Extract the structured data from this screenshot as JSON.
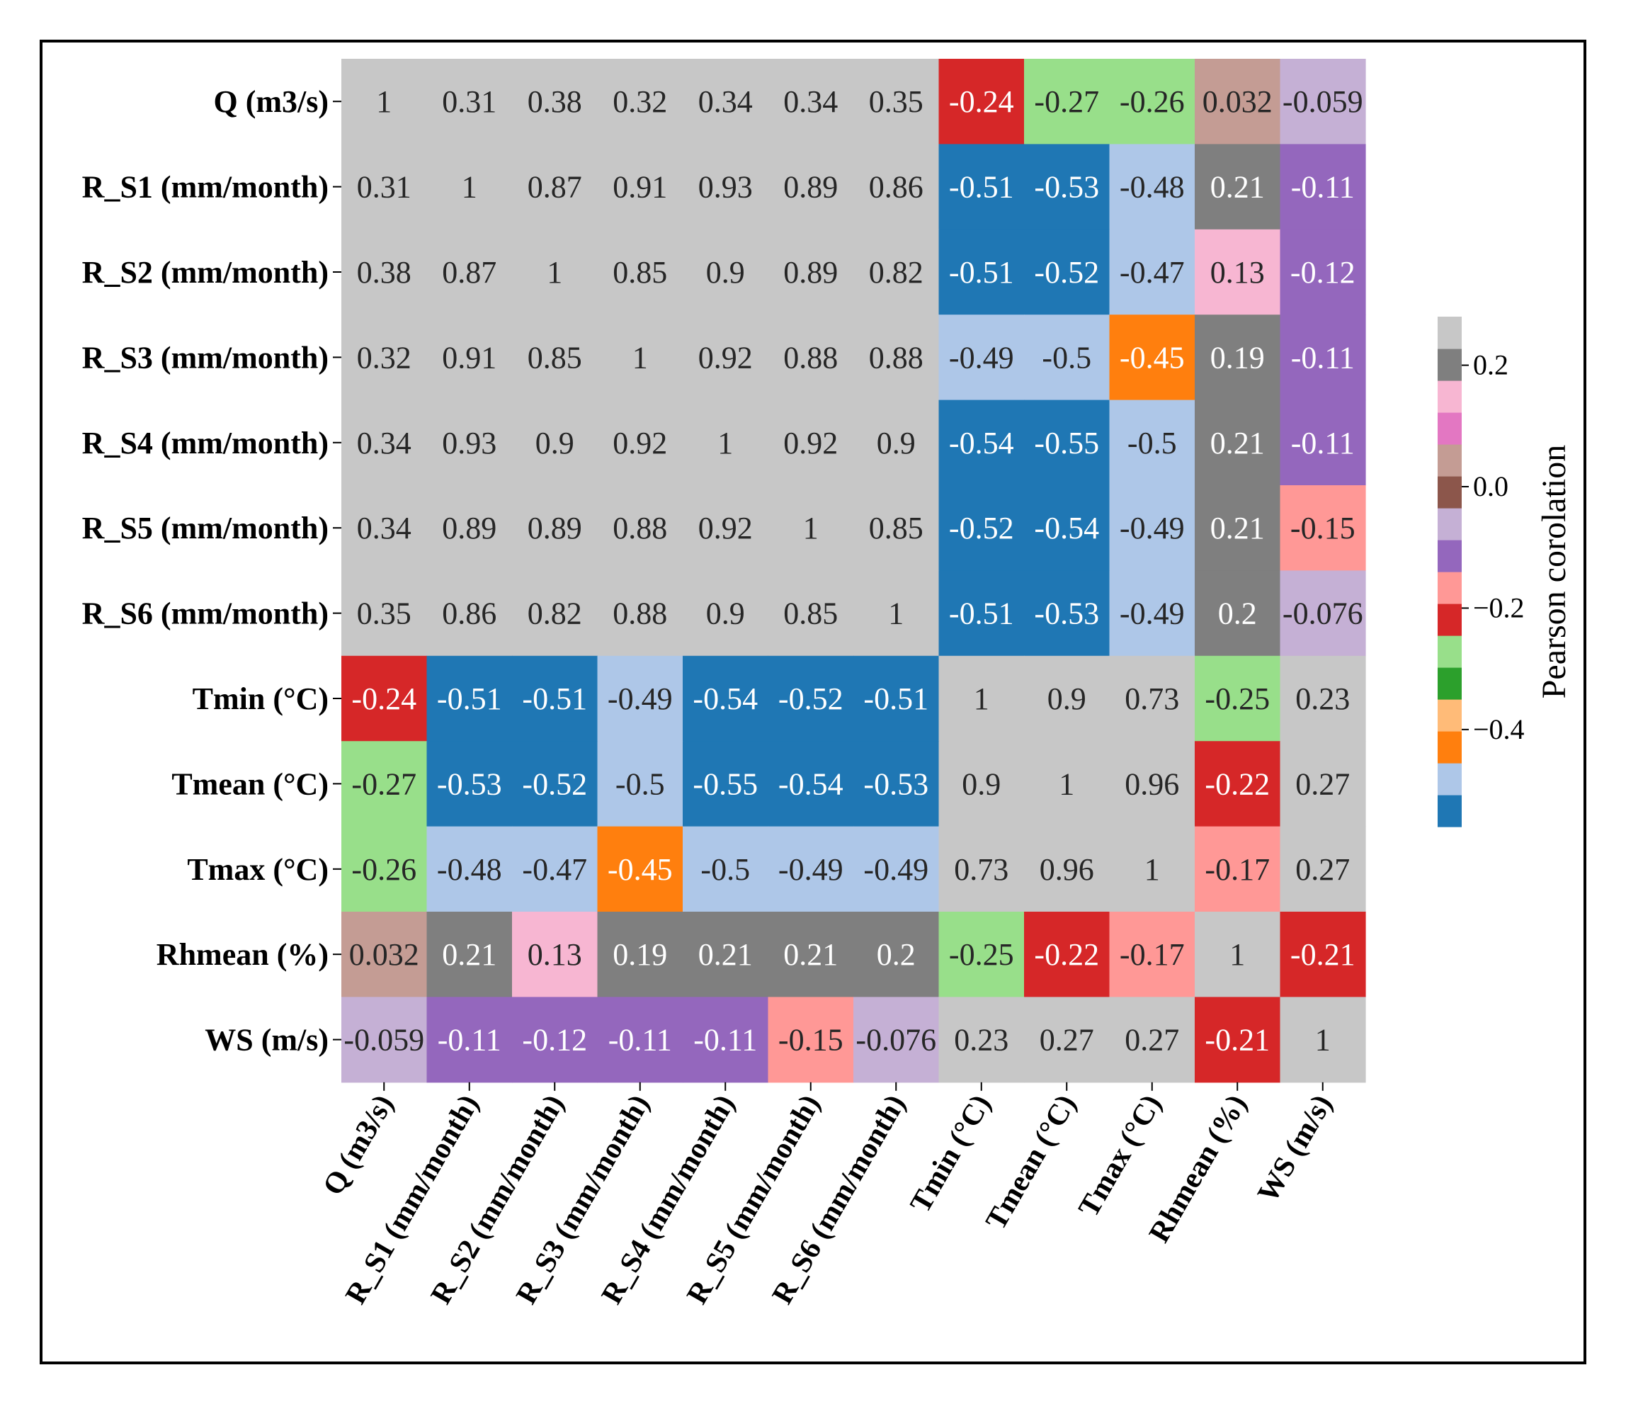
{
  "chart_data": {
    "type": "heatmap",
    "title": "",
    "variables": [
      "Q (m3/s)",
      "R_S1 (mm/month)",
      "R_S2 (mm/month)",
      "R_S3 (mm/month)",
      "R_S4 (mm/month)",
      "R_S5 (mm/month)",
      "R_S6 (mm/month)",
      "Tmin (°C)",
      "Tmean (°C)",
      "Tmax (°C)",
      "Rhmean (%)",
      "WS (m/s)"
    ],
    "values": [
      [
        1,
        0.31,
        0.38,
        0.32,
        0.34,
        0.34,
        0.35,
        -0.24,
        -0.27,
        -0.26,
        0.032,
        -0.059
      ],
      [
        0.31,
        1,
        0.87,
        0.91,
        0.93,
        0.89,
        0.86,
        -0.51,
        -0.53,
        -0.48,
        0.21,
        -0.11
      ],
      [
        0.38,
        0.87,
        1,
        0.85,
        0.9,
        0.89,
        0.82,
        -0.51,
        -0.52,
        -0.47,
        0.13,
        -0.12
      ],
      [
        0.32,
        0.91,
        0.85,
        1,
        0.92,
        0.88,
        0.88,
        -0.49,
        -0.5,
        -0.45,
        0.19,
        -0.11
      ],
      [
        0.34,
        0.93,
        0.9,
        0.92,
        1,
        0.92,
        0.9,
        -0.54,
        -0.55,
        -0.5,
        0.21,
        -0.11
      ],
      [
        0.34,
        0.89,
        0.89,
        0.88,
        0.92,
        1,
        0.85,
        -0.52,
        -0.54,
        -0.49,
        0.21,
        -0.15
      ],
      [
        0.35,
        0.86,
        0.82,
        0.88,
        0.9,
        0.85,
        1,
        -0.51,
        -0.53,
        -0.49,
        0.2,
        -0.076
      ],
      [
        -0.24,
        -0.51,
        -0.51,
        -0.49,
        -0.54,
        -0.52,
        -0.51,
        1,
        0.9,
        0.73,
        -0.25,
        0.23
      ],
      [
        -0.27,
        -0.53,
        -0.52,
        -0.5,
        -0.55,
        -0.54,
        -0.53,
        0.9,
        1,
        0.96,
        -0.22,
        0.27
      ],
      [
        -0.26,
        -0.48,
        -0.47,
        -0.45,
        -0.5,
        -0.49,
        -0.49,
        0.73,
        0.96,
        1,
        -0.17,
        0.27
      ],
      [
        0.032,
        0.21,
        0.13,
        0.19,
        0.21,
        0.21,
        0.2,
        -0.25,
        -0.22,
        -0.17,
        1,
        -0.21
      ],
      [
        -0.059,
        -0.11,
        -0.12,
        -0.11,
        -0.11,
        -0.15,
        -0.076,
        0.23,
        0.27,
        0.27,
        -0.21,
        1
      ]
    ],
    "colorbar": {
      "label": "Pearson corolation",
      "ticks": [
        0.2,
        0.0,
        -0.2,
        -0.4
      ],
      "tick_labels": [
        "0.2",
        "0.0",
        "−0.2",
        "−0.4"
      ],
      "range": [
        -0.56,
        0.28
      ],
      "colors": [
        "#1f77b4",
        "#aec7e8",
        "#ff7f0e",
        "#ffbb78",
        "#2ca02c",
        "#98df8a",
        "#d62728",
        "#ff9896",
        "#9467bd",
        "#c5b0d5",
        "#8c564b",
        "#c49c94",
        "#e377c2",
        "#f7b6d2",
        "#7f7f7f",
        "#c7c7c7"
      ]
    },
    "grid": false,
    "legend": "right"
  }
}
